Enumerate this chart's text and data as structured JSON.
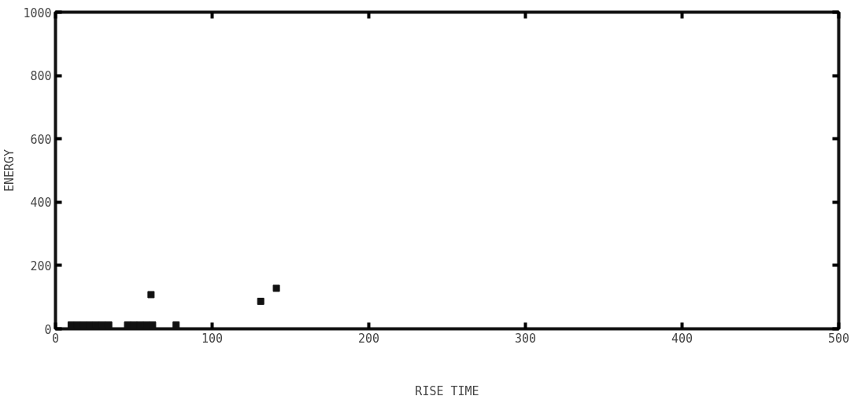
{
  "chart_data": {
    "type": "scatter",
    "xlabel": "RISE TIME",
    "ylabel": "ENERGY",
    "x": [
      10,
      14,
      18,
      22,
      26,
      30,
      34,
      46,
      50,
      54,
      58,
      62,
      77,
      61,
      131,
      141
    ],
    "values": [
      12,
      12,
      12,
      12,
      12,
      12,
      12,
      12,
      12,
      12,
      12,
      12,
      12,
      108,
      87,
      128
    ],
    "color": "#111111",
    "marker": "square",
    "xlim": [
      0,
      500
    ],
    "xticks": [
      0,
      100,
      200,
      300,
      400,
      500
    ],
    "ylim": [
      0,
      1000
    ],
    "yticks": [
      0,
      200,
      400,
      600,
      800,
      1000
    ],
    "grid": false
  }
}
